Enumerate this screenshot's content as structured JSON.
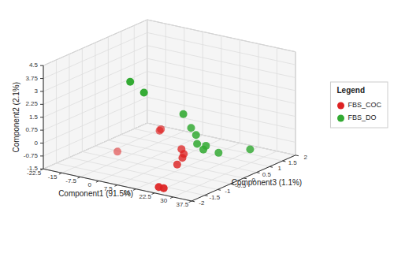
{
  "chart_data": {
    "type": "scatter3d",
    "xlabel": "Component1 (91.5%)",
    "ylabel": "Component3 (1.1%)",
    "zlabel": "Component2 (2.1%)",
    "xlim": [
      -22.5,
      37.5
    ],
    "ylim": [
      -2,
      2
    ],
    "zlim": [
      -1.5,
      4.5
    ],
    "xticks": [
      -22.5,
      -15,
      -7.5,
      0,
      7.5,
      15,
      22.5,
      30,
      37.5
    ],
    "yticks": [
      -2,
      -1.5,
      -1,
      -0.5,
      0,
      0.5,
      1,
      1.5,
      2
    ],
    "zticks": [
      -1.5,
      -0.75,
      0,
      0.75,
      1.5,
      2.25,
      3,
      3.75,
      4.5
    ],
    "grid": true,
    "legend": "right",
    "legend_title": "Legend",
    "series": [
      {
        "name": "FBS_COC",
        "color": "#dd2222",
        "x": [
          -13,
          3,
          3,
          15,
          17,
          18,
          18,
          20,
          22
        ],
        "y": [
          -0.05,
          0.05,
          0.1,
          -0.25,
          -0.35,
          -0.5,
          -0.7,
          -1.6,
          -1.6
        ],
        "z": [
          -1.5,
          0.15,
          0.2,
          -0.35,
          -0.5,
          -0.6,
          -0.85,
          -1.5,
          -1.5
        ]
      },
      {
        "name": "FBS_DO",
        "color": "#33aa33",
        "x": [
          10,
          14,
          21,
          21,
          23,
          25,
          27,
          27,
          30,
          37
        ],
        "y": [
          -1.75,
          -1.6,
          -0.75,
          -0.45,
          -0.45,
          -0.6,
          -0.55,
          -0.45,
          -0.25,
          0.3
        ],
        "z": [
          4.4,
          3.8,
          2.2,
          1.2,
          0.85,
          0.5,
          0.2,
          0.35,
          -0.1,
          -0.05
        ]
      }
    ]
  }
}
